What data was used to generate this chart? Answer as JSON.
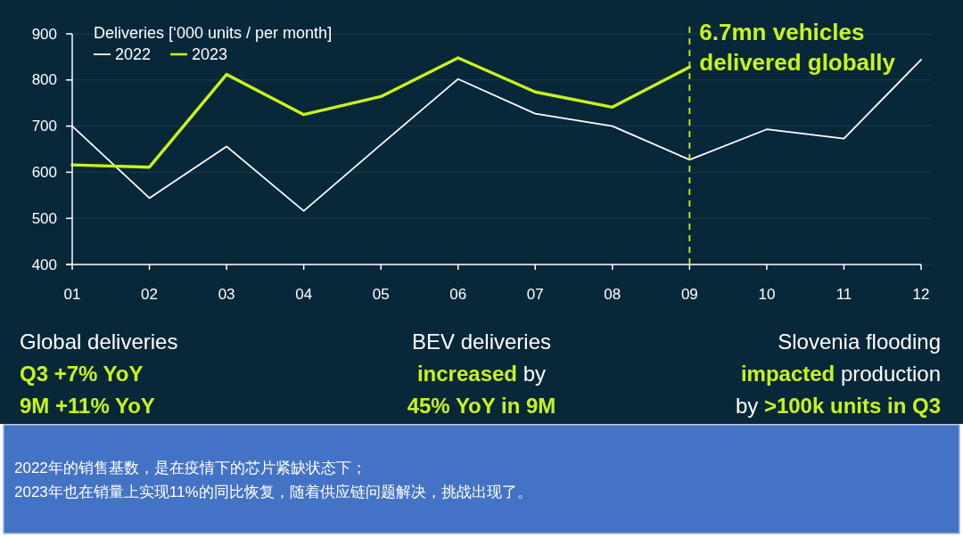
{
  "chart_data": {
    "type": "line",
    "categories": [
      "01",
      "02",
      "03",
      "04",
      "05",
      "06",
      "07",
      "08",
      "09",
      "10",
      "11",
      "12"
    ],
    "series": [
      {
        "name": "2022",
        "color": "#ffffff",
        "values": [
          700,
          544,
          656,
          516,
          660,
          802,
          727,
          700,
          627,
          693,
          673,
          844
        ]
      },
      {
        "name": "2023",
        "color": "#c8f31d",
        "values": [
          616,
          611,
          812,
          725,
          764,
          848,
          774,
          741,
          828,
          null,
          null,
          null
        ]
      }
    ],
    "ylim": [
      400,
      900
    ],
    "yticks": [
      400,
      500,
      600,
      700,
      800,
      900
    ],
    "grid": "y",
    "legend": "top left",
    "legend_title": "Deliveries [‘000 units / per month]",
    "ref_lines": [
      {
        "axis": "x",
        "value": "09",
        "label": "6.7mn vehicles\ndelivered globally",
        "color": "#c8f31d",
        "line_style": "dashed"
      }
    ],
    "annotations": [
      "Global deliveries",
      "Q3 +7% YoY",
      "9M +11% YoY",
      "BEV deliveries",
      "increased",
      "by",
      "45% YoY in 9M",
      "Slovenia flooding",
      "impacted",
      "production",
      "by",
      ">100k units in Q3",
      "2022年的销售基数，是在疫情下的芯片紧缺状态下；",
      "2023年也在销量上实现11%的同比恢复，随着供应链问题解决，挑战出现了。"
    ]
  }
}
